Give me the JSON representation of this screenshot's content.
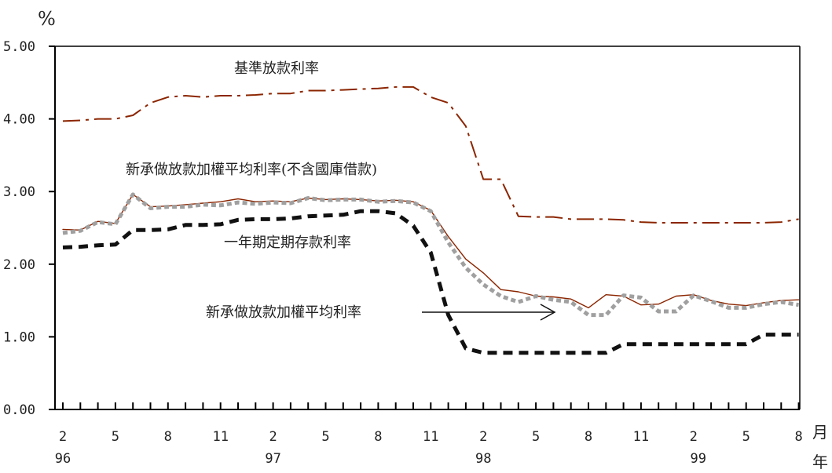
{
  "chart_data": {
    "type": "line",
    "y_unit": "%",
    "x_unit_month": "月",
    "x_unit_year": "年",
    "ylim": [
      0,
      5
    ],
    "yticks": [
      "0.00",
      "1.00",
      "2.00",
      "3.00",
      "4.00",
      "5.00"
    ],
    "month_ticks": [
      "2",
      "5",
      "8",
      "11",
      "2",
      "5",
      "8",
      "11",
      "2",
      "5",
      "8",
      "11",
      "2",
      "5",
      "8"
    ],
    "year_ticks": [
      "96",
      "97",
      "98",
      "99"
    ],
    "x": [
      "96-02",
      "96-03",
      "96-04",
      "96-05",
      "96-06",
      "96-07",
      "96-08",
      "96-09",
      "96-10",
      "96-11",
      "96-12",
      "97-01",
      "97-02",
      "97-03",
      "97-04",
      "97-05",
      "97-06",
      "97-07",
      "97-08",
      "97-09",
      "97-10",
      "97-11",
      "97-12",
      "98-01",
      "98-02",
      "98-03",
      "98-04",
      "98-05",
      "98-06",
      "98-07",
      "98-08",
      "98-09",
      "98-10",
      "98-11",
      "98-12",
      "99-01",
      "99-02",
      "99-03",
      "99-04",
      "99-05",
      "99-06",
      "99-07",
      "99-08"
    ],
    "grid": false,
    "series": [
      {
        "name": "基準放款利率",
        "color": "#8b2500",
        "style": "dashdot",
        "values": [
          3.97,
          3.98,
          4.0,
          4.0,
          4.05,
          4.22,
          4.3,
          4.32,
          4.3,
          4.32,
          4.32,
          4.33,
          4.35,
          4.35,
          4.39,
          4.39,
          4.4,
          4.41,
          4.42,
          4.44,
          4.44,
          4.3,
          4.22,
          3.9,
          3.17,
          3.17,
          2.66,
          2.65,
          2.65,
          2.62,
          2.62,
          2.62,
          2.61,
          2.58,
          2.57,
          2.57,
          2.57,
          2.57,
          2.57,
          2.57,
          2.57,
          2.58,
          2.62
        ]
      },
      {
        "name": "新承做放款加權平均利率(不含國庫借款)",
        "color": "#8b2500",
        "style": "solid-thin",
        "values": [
          2.48,
          2.47,
          2.59,
          2.56,
          2.96,
          2.79,
          2.8,
          2.82,
          2.84,
          2.86,
          2.9,
          2.86,
          2.87,
          2.86,
          2.91,
          2.89,
          2.9,
          2.89,
          2.87,
          2.88,
          2.86,
          2.74,
          2.38,
          2.07,
          1.88,
          1.65,
          1.62,
          1.56,
          1.55,
          1.52,
          1.4,
          1.58,
          1.56,
          1.44,
          1.45,
          1.56,
          1.58,
          1.5,
          1.45,
          1.43,
          1.47,
          1.5,
          1.51
        ]
      },
      {
        "name": "新承做放款加權平均利率",
        "color": "#a0a0a0",
        "style": "dotted-thick",
        "values": [
          2.43,
          2.46,
          2.58,
          2.55,
          2.96,
          2.77,
          2.79,
          2.79,
          2.82,
          2.81,
          2.85,
          2.83,
          2.85,
          2.84,
          2.91,
          2.88,
          2.89,
          2.89,
          2.86,
          2.87,
          2.85,
          2.73,
          2.3,
          1.95,
          1.72,
          1.56,
          1.48,
          1.56,
          1.51,
          1.48,
          1.3,
          1.3,
          1.57,
          1.54,
          1.35,
          1.35,
          1.57,
          1.49,
          1.4,
          1.4,
          1.45,
          1.48,
          1.44
        ]
      },
      {
        "name": "一年期定期存款利率",
        "color": "#111111",
        "style": "dashed-thick",
        "values": [
          2.23,
          2.24,
          2.26,
          2.27,
          2.47,
          2.47,
          2.48,
          2.54,
          2.54,
          2.55,
          2.61,
          2.62,
          2.62,
          2.63,
          2.66,
          2.67,
          2.68,
          2.73,
          2.73,
          2.7,
          2.53,
          2.16,
          1.3,
          0.84,
          0.78,
          0.78,
          0.78,
          0.78,
          0.78,
          0.78,
          0.78,
          0.78,
          0.9,
          0.9,
          0.9,
          0.9,
          0.9,
          0.9,
          0.9,
          0.9,
          1.03,
          1.03,
          1.03
        ]
      }
    ],
    "annotations": [
      {
        "text": "基準放款利率"
      },
      {
        "text": "新承做放款加權平均利率(不含國庫借款)"
      },
      {
        "text": "一年期定期存款利率"
      },
      {
        "text": "新承做放款加權平均利率"
      }
    ]
  }
}
